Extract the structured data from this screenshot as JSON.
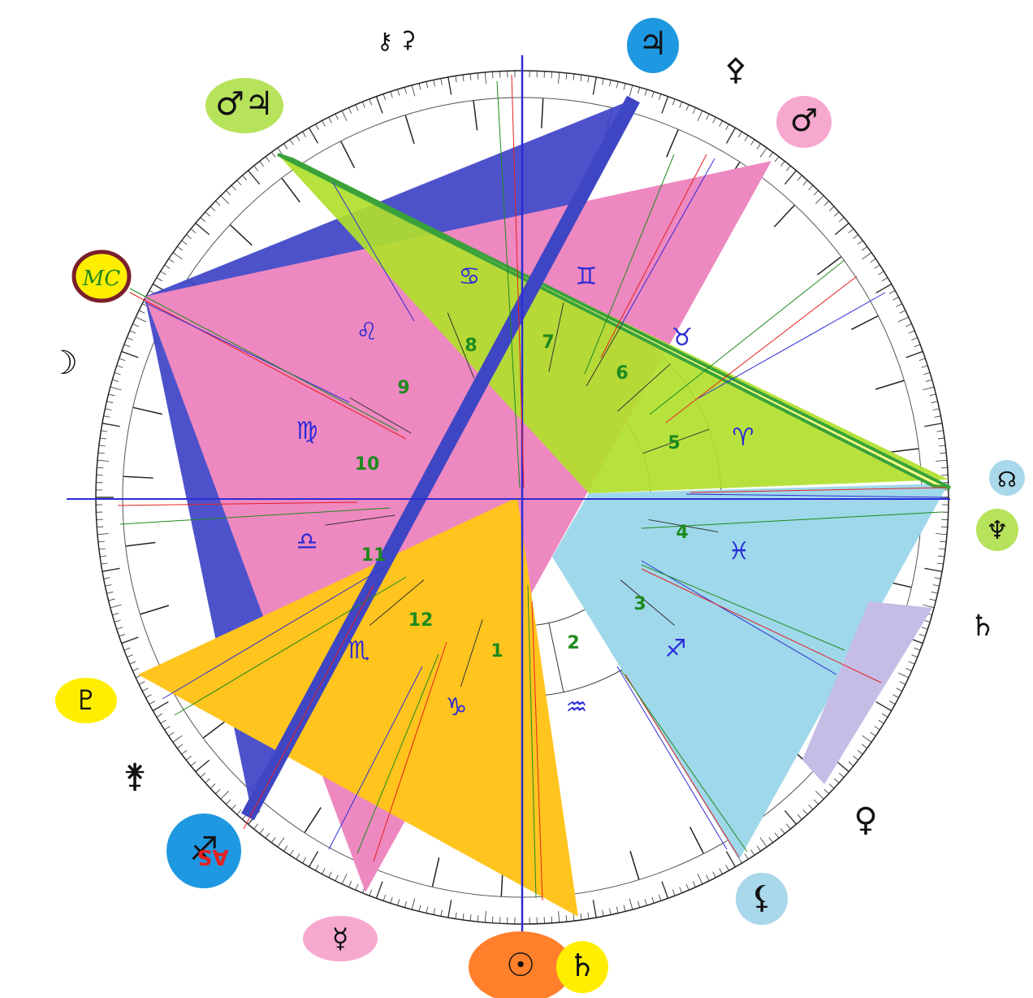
{
  "chart": {
    "houses": [
      "1",
      "2",
      "3",
      "4",
      "5",
      "6",
      "7",
      "8",
      "9",
      "10",
      "11",
      "12"
    ],
    "signs": [
      "♑",
      "♒",
      "♓",
      "♈",
      "♉",
      "♊",
      "♋",
      "♌",
      "♍",
      "♎",
      "♏",
      "♐"
    ],
    "mc_label": "MC",
    "asc_label": "AS",
    "colors": {
      "pink": "#ee88c0",
      "blue": "#4349c8",
      "green": "#b1e02c",
      "yellow": "#ffc41e",
      "lightblue": "#9fd8ea",
      "lavender": "#c5bde6",
      "house_num": "#1e8a1e",
      "sign_glyph": "#2b2bd6"
    },
    "planets": [
      {
        "id": "sun",
        "glyph": "☉",
        "bg": "#ff7f2a"
      },
      {
        "id": "saturn-uranus",
        "glyph": "♄",
        "bg": "#ffee00"
      },
      {
        "id": "mercury",
        "glyph": "☿",
        "bg": "#f7a8cf"
      },
      {
        "id": "moon-node",
        "glyph": "☊",
        "bg": "#a8d8ea"
      },
      {
        "id": "neptune",
        "glyph": "♆",
        "bg": "#b7e25b"
      },
      {
        "id": "mars",
        "glyph": "♂",
        "bg": "#f7a8cf"
      },
      {
        "id": "jupiter",
        "glyph": "♃",
        "bg": "#1e98e0"
      },
      {
        "id": "mars-pair",
        "glyph": "♂♃",
        "bg": "#b7e25b"
      },
      {
        "id": "pluto-asc",
        "glyph": "♇",
        "bg": "#ffee00"
      },
      {
        "id": "ascendant",
        "glyph": "♐",
        "bg": "#1e98e0"
      },
      {
        "id": "lilith",
        "glyph": "⚸",
        "bg": "#a8d8ea"
      }
    ],
    "free_glyphs": [
      {
        "id": "moon",
        "glyph": "☽"
      },
      {
        "id": "chiron-top",
        "glyph": "⚷"
      },
      {
        "id": "ceres-top",
        "glyph": "⚳"
      },
      {
        "id": "pallas",
        "glyph": "⚴"
      },
      {
        "id": "saturn-right",
        "glyph": "♄"
      },
      {
        "id": "venus",
        "glyph": "♀"
      },
      {
        "id": "juno",
        "glyph": "⚵"
      }
    ]
  }
}
